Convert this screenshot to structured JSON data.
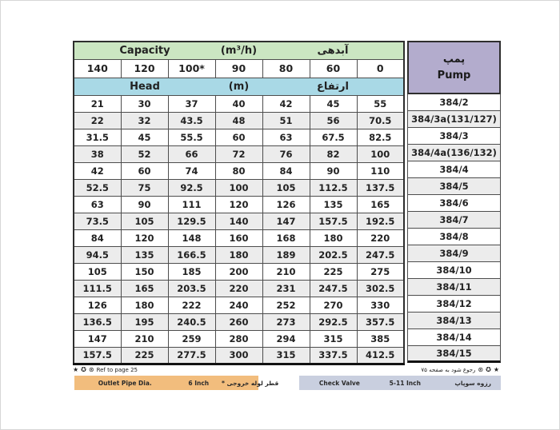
{
  "table": {
    "header": {
      "capacity_en": "Capacity",
      "capacity_unit": "(m³/h)",
      "capacity_fa": "آبدهی",
      "flow_columns": [
        "140",
        "120",
        "100*",
        "90",
        "80",
        "60",
        "0"
      ],
      "head_en": "Head",
      "head_unit": "(m)",
      "head_fa": "ارتفاع",
      "pump_fa": "پمپ",
      "pump_en": "Pump"
    },
    "rows": [
      {
        "pump": "384/2",
        "heads": [
          "21",
          "30",
          "37",
          "40",
          "42",
          "45",
          "55"
        ]
      },
      {
        "pump": "384/3a(131/127)",
        "heads": [
          "22",
          "32",
          "43.5",
          "48",
          "51",
          "56",
          "70.5"
        ]
      },
      {
        "pump": "384/3",
        "heads": [
          "31.5",
          "45",
          "55.5",
          "60",
          "63",
          "67.5",
          "82.5"
        ]
      },
      {
        "pump": "384/4a(136/132)",
        "heads": [
          "38",
          "52",
          "66",
          "72",
          "76",
          "82",
          "100"
        ]
      },
      {
        "pump": "384/4",
        "heads": [
          "42",
          "60",
          "74",
          "80",
          "84",
          "90",
          "110"
        ]
      },
      {
        "pump": "384/5",
        "heads": [
          "52.5",
          "75",
          "92.5",
          "100",
          "105",
          "112.5",
          "137.5"
        ]
      },
      {
        "pump": "384/6",
        "heads": [
          "63",
          "90",
          "111",
          "120",
          "126",
          "135",
          "165"
        ]
      },
      {
        "pump": "384/7",
        "heads": [
          "73.5",
          "105",
          "129.5",
          "140",
          "147",
          "157.5",
          "192.5"
        ]
      },
      {
        "pump": "384/8",
        "heads": [
          "84",
          "120",
          "148",
          "160",
          "168",
          "180",
          "220"
        ]
      },
      {
        "pump": "384/9",
        "heads": [
          "94.5",
          "135",
          "166.5",
          "180",
          "189",
          "202.5",
          "247.5"
        ]
      },
      {
        "pump": "384/10",
        "heads": [
          "105",
          "150",
          "185",
          "200",
          "210",
          "225",
          "275"
        ]
      },
      {
        "pump": "384/11",
        "heads": [
          "111.5",
          "165",
          "203.5",
          "220",
          "231",
          "247.5",
          "302.5"
        ]
      },
      {
        "pump": "384/12",
        "heads": [
          "126",
          "180",
          "222",
          "240",
          "252",
          "270",
          "330"
        ]
      },
      {
        "pump": "384/13",
        "heads": [
          "136.5",
          "195",
          "240.5",
          "260",
          "273",
          "292.5",
          "357.5"
        ]
      },
      {
        "pump": "384/14",
        "heads": [
          "147",
          "210",
          "259",
          "280",
          "294",
          "315",
          "385"
        ]
      },
      {
        "pump": "384/15",
        "heads": [
          "157.5",
          "225",
          "277.5",
          "300",
          "315",
          "337.5",
          "412.5"
        ]
      }
    ]
  },
  "footnotes": {
    "sym_star": "★",
    "sym_circle": "✪",
    "sym_circled_asterisk": "⊛",
    "left_text": "Ref to page 25",
    "right_text": "رجوع شود به صفحه ۷۵"
  },
  "legend": {
    "outlet": {
      "label_en": "Outlet Pipe Dia.",
      "value": "6 Inch",
      "label_fa": "* قطر لوله خروجی"
    },
    "valve": {
      "label_en": "Check Valve",
      "value": "5-11 Inch",
      "label_fa": "رزوه سوپاپ"
    }
  },
  "colors": {
    "capacity_header": "#cbe6c2",
    "head_header": "#a9d9e6",
    "pump_header": "#b3accd",
    "alt_row": "#ececec",
    "outlet_bar": "#f2bd7d",
    "valve_bar": "#c9cfdf"
  }
}
